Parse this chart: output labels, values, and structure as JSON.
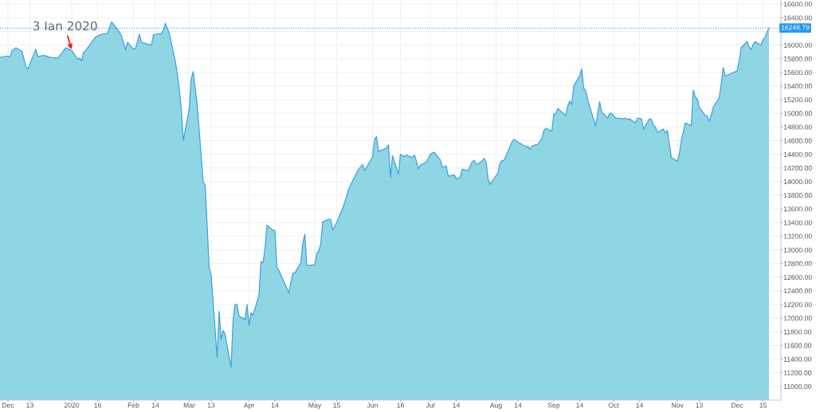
{
  "chart_data": {
    "type": "area",
    "color": "#8ed6e3",
    "x": [
      "2019-11-28",
      "2019-12-02",
      "2019-12-03",
      "2019-12-04",
      "2019-12-06",
      "2019-12-09",
      "2019-12-11",
      "2019-12-12",
      "2019-12-16",
      "2019-12-17",
      "2019-12-20",
      "2019-12-23",
      "2019-12-27",
      "2019-12-30",
      "2019-12-31",
      "2020-01-03",
      "2020-01-06",
      "2020-01-07",
      "2020-01-08",
      "2020-01-09",
      "2020-01-10",
      "2020-01-13",
      "2020-01-15",
      "2020-01-16",
      "2020-01-17",
      "2020-01-21",
      "2020-01-23",
      "2020-01-27",
      "2020-01-28",
      "2020-01-30",
      "2020-01-31",
      "2020-02-03",
      "2020-02-04",
      "2020-02-06",
      "2020-02-07",
      "2020-02-12",
      "2020-02-13",
      "2020-02-17",
      "2020-02-18",
      "2020-02-19",
      "2020-02-21",
      "2020-02-24",
      "2020-02-25",
      "2020-02-26",
      "2020-02-27",
      "2020-02-28",
      "2020-03-02",
      "2020-03-03",
      "2020-03-04",
      "2020-03-06",
      "2020-03-09",
      "2020-03-10",
      "2020-03-12",
      "2020-03-13",
      "2020-03-16",
      "2020-03-17",
      "2020-03-18",
      "2020-03-19",
      "2020-03-20",
      "2020-03-23",
      "2020-03-24",
      "2020-03-25",
      "2020-03-26",
      "2020-03-27",
      "2020-03-30",
      "2020-03-31",
      "2020-04-01",
      "2020-04-02",
      "2020-04-03",
      "2020-04-06",
      "2020-04-07",
      "2020-04-08",
      "2020-04-09",
      "2020-04-10",
      "2020-04-13",
      "2020-04-14",
      "2020-04-15",
      "2020-04-16",
      "2020-04-21",
      "2020-04-22",
      "2020-04-23",
      "2020-04-24",
      "2020-04-27",
      "2020-04-28",
      "2020-04-29",
      "2020-04-30",
      "2020-05-04",
      "2020-05-05",
      "2020-05-06",
      "2020-05-07",
      "2020-05-08",
      "2020-05-11",
      "2020-05-12",
      "2020-05-13",
      "2020-05-15",
      "2020-05-18",
      "2020-05-20",
      "2020-05-21",
      "2020-05-25",
      "2020-05-26",
      "2020-05-28",
      "2020-05-29",
      "2020-06-02",
      "2020-06-03",
      "2020-06-04",
      "2020-06-05",
      "2020-06-09",
      "2020-06-10",
      "2020-06-11",
      "2020-06-12",
      "2020-06-15",
      "2020-06-16",
      "2020-06-17",
      "2020-06-18",
      "2020-06-19",
      "2020-06-22",
      "2020-06-23",
      "2020-06-24",
      "2020-06-25",
      "2020-06-26",
      "2020-06-29",
      "2020-06-30",
      "2020-07-01",
      "2020-07-02",
      "2020-07-03",
      "2020-07-06",
      "2020-07-07",
      "2020-07-08",
      "2020-07-09",
      "2020-07-10",
      "2020-07-13",
      "2020-07-14",
      "2020-07-15",
      "2020-07-16",
      "2020-07-17",
      "2020-07-20",
      "2020-07-21",
      "2020-07-22",
      "2020-07-23",
      "2020-07-24",
      "2020-07-27",
      "2020-07-28",
      "2020-07-29",
      "2020-07-30",
      "2020-07-31",
      "2020-08-04",
      "2020-08-05",
      "2020-08-06",
      "2020-08-07",
      "2020-08-11",
      "2020-08-12",
      "2020-08-14",
      "2020-08-18",
      "2020-08-19",
      "2020-08-20",
      "2020-08-21",
      "2020-08-24",
      "2020-08-26",
      "2020-08-27",
      "2020-08-28",
      "2020-08-31",
      "2020-09-01",
      "2020-09-02",
      "2020-09-03",
      "2020-09-07",
      "2020-09-08",
      "2020-09-09",
      "2020-09-10",
      "2020-09-11",
      "2020-09-14",
      "2020-09-15",
      "2020-09-16",
      "2020-09-17",
      "2020-09-18",
      "2020-09-22",
      "2020-09-23",
      "2020-09-24",
      "2020-09-25",
      "2020-09-28",
      "2020-09-29",
      "2020-09-30",
      "2020-10-01",
      "2020-10-02",
      "2020-10-06",
      "2020-10-07",
      "2020-10-08",
      "2020-10-09",
      "2020-10-12",
      "2020-10-13",
      "2020-10-15",
      "2020-10-16",
      "2020-10-19",
      "2020-10-20",
      "2020-10-21",
      "2020-10-22",
      "2020-10-23",
      "2020-10-26",
      "2020-10-27",
      "2020-10-28",
      "2020-10-29",
      "2020-10-30",
      "2020-11-02",
      "2020-11-03",
      "2020-11-04",
      "2020-11-05",
      "2020-11-06",
      "2020-11-09",
      "2020-11-10",
      "2020-11-11",
      "2020-11-12",
      "2020-11-13",
      "2020-11-16",
      "2020-11-17",
      "2020-11-18",
      "2020-11-19",
      "2020-11-20",
      "2020-11-23",
      "2020-11-24",
      "2020-11-25",
      "2020-11-26",
      "2020-11-27",
      "2020-12-02",
      "2020-12-03",
      "2020-12-04",
      "2020-12-07",
      "2020-12-08",
      "2020-12-09",
      "2020-12-10",
      "2020-12-11",
      "2020-12-14",
      "2020-12-15",
      "2020-12-16",
      "2020-12-17",
      "2020-12-18"
    ],
    "values": [
      15820,
      15840,
      15820,
      15920,
      15960,
      15910,
      15680,
      15650,
      15940,
      15830,
      15850,
      15820,
      15810,
      15920,
      15960,
      15920,
      15790,
      15810,
      15770,
      15900,
      15920,
      16040,
      16120,
      16130,
      16150,
      16170,
      16340,
      16190,
      16130,
      15930,
      16040,
      15940,
      15950,
      16160,
      16040,
      16000,
      16150,
      16170,
      16220,
      16320,
      16170,
      15760,
      15580,
      15350,
      15080,
      14600,
      15070,
      15510,
      15610,
      15120,
      13990,
      13950,
      12740,
      12630,
      11420,
      12100,
      11690,
      11820,
      11760,
      11280,
      11970,
      12200,
      12200,
      12030,
      11980,
      12200,
      11890,
      12080,
      12040,
      12340,
      12830,
      12810,
      13010,
      13360,
      13290,
      13280,
      12750,
      12700,
      12370,
      12520,
      12660,
      12660,
      12810,
      13100,
      13230,
      12770,
      12780,
      12950,
      12980,
      13090,
      13410,
      13450,
      13440,
      13290,
      13400,
      13610,
      13780,
      13890,
      14130,
      14180,
      14250,
      14160,
      14360,
      14620,
      14660,
      14440,
      14490,
      14540,
      14060,
      14380,
      14110,
      14400,
      14380,
      14370,
      14390,
      14350,
      14390,
      14300,
      14190,
      14240,
      14290,
      14340,
      14400,
      14420,
      14430,
      14320,
      14210,
      14220,
      14230,
      14080,
      14100,
      14040,
      14050,
      14060,
      14180,
      14160,
      14230,
      14290,
      14310,
      14250,
      14300,
      14340,
      14290,
      14040,
      13960,
      14130,
      14270,
      14310,
      14310,
      14580,
      14620,
      14580,
      14510,
      14520,
      14470,
      14520,
      14550,
      14630,
      14750,
      14780,
      14740,
      14990,
      15000,
      15070,
      14970,
      15110,
      15180,
      15130,
      15400,
      15550,
      15650,
      15370,
      15330,
      15200,
      14810,
      14990,
      15170,
      15020,
      14930,
      15000,
      15000,
      14970,
      14930,
      14920,
      14930,
      14910,
      14920,
      14860,
      14930,
      14920,
      14770,
      14920,
      14910,
      14820,
      14800,
      14720,
      14770,
      14710,
      14750,
      14550,
      14350,
      14300,
      14400,
      14600,
      14730,
      14860,
      14820,
      15340,
      15240,
      15210,
      15090,
      14970,
      14960,
      14890,
      14970,
      15090,
      15230,
      15420,
      15670,
      15550,
      15560,
      15620,
      15760,
      15960,
      16050,
      15980,
      15930,
      16010,
      16050,
      16000,
      16080,
      16110,
      16190,
      16250
    ],
    "xlim": [
      "2019-11-28",
      "2020-12-24"
    ],
    "xticks": [
      {
        "value": "2019-12-02",
        "label": "Dec"
      },
      {
        "value": "2019-12-13",
        "label": "13"
      },
      {
        "value": "2020-01-03",
        "label": "2020"
      },
      {
        "value": "2020-01-16",
        "label": "16"
      },
      {
        "value": "2020-02-03",
        "label": "Feb"
      },
      {
        "value": "2020-02-14",
        "label": "14"
      },
      {
        "value": "2020-03-02",
        "label": "Mar"
      },
      {
        "value": "2020-03-13",
        "label": "13"
      },
      {
        "value": "2020-04-01",
        "label": "Apr"
      },
      {
        "value": "2020-04-14",
        "label": "14"
      },
      {
        "value": "2020-05-04",
        "label": "May"
      },
      {
        "value": "2020-05-15",
        "label": "15"
      },
      {
        "value": "2020-06-02",
        "label": "Jun"
      },
      {
        "value": "2020-06-16",
        "label": "16"
      },
      {
        "value": "2020-07-01",
        "label": "Jul"
      },
      {
        "value": "2020-07-14",
        "label": "14"
      },
      {
        "value": "2020-08-03",
        "label": "Aug"
      },
      {
        "value": "2020-08-14",
        "label": "14"
      },
      {
        "value": "2020-09-01",
        "label": "Sep"
      },
      {
        "value": "2020-09-14",
        "label": "14"
      },
      {
        "value": "2020-10-01",
        "label": "Oct"
      },
      {
        "value": "2020-10-14",
        "label": "14"
      },
      {
        "value": "2020-11-02",
        "label": "Nov"
      },
      {
        "value": "2020-11-13",
        "label": "13"
      },
      {
        "value": "2020-12-02",
        "label": "Dec"
      },
      {
        "value": "2020-12-15",
        "label": "15"
      }
    ],
    "ylim": [
      10800,
      16660
    ],
    "yticks": [
      {
        "value": 11000,
        "label": "11000.00"
      },
      {
        "value": 11200,
        "label": "11200.00"
      },
      {
        "value": 11400,
        "label": "11400.00"
      },
      {
        "value": 11600,
        "label": "11600.00"
      },
      {
        "value": 11800,
        "label": "11800.00"
      },
      {
        "value": 12000,
        "label": "12000.00"
      },
      {
        "value": 12200,
        "label": "12200.00"
      },
      {
        "value": 12400,
        "label": "12400.00"
      },
      {
        "value": 12600,
        "label": "12600.00"
      },
      {
        "value": 12800,
        "label": "12800.00"
      },
      {
        "value": 13000,
        "label": "13000.00"
      },
      {
        "value": 13200,
        "label": "13200.00"
      },
      {
        "value": 13400,
        "label": "13400.00"
      },
      {
        "value": 13600,
        "label": "13600.00"
      },
      {
        "value": 13800,
        "label": "13800.00"
      },
      {
        "value": 14000,
        "label": "14000.00"
      },
      {
        "value": 14200,
        "label": "14200.00"
      },
      {
        "value": 14400,
        "label": "14400.00"
      },
      {
        "value": 14600,
        "label": "14600.00"
      },
      {
        "value": 14800,
        "label": "14800.00"
      },
      {
        "value": 15000,
        "label": "15000.00"
      },
      {
        "value": 15200,
        "label": "15200.00"
      },
      {
        "value": 15400,
        "label": "15400.00"
      },
      {
        "value": 15600,
        "label": "15600.00"
      },
      {
        "value": 15800,
        "label": "15800.00"
      },
      {
        "value": 16000,
        "label": "16000.00"
      },
      {
        "value": 16200,
        "label": null
      },
      {
        "value": 16400,
        "label": "16400.00"
      },
      {
        "value": 16600,
        "label": "16600.00"
      }
    ],
    "grid": true,
    "annotations": [
      {
        "text": "3 Ian 2020",
        "x": "2020-01-03",
        "y": 15920
      }
    ],
    "ref_lines": [
      {
        "axis": "y",
        "value": 16248.79,
        "label": "16248.79",
        "color": "#2196f3",
        "line_style": "dotted"
      }
    ]
  }
}
